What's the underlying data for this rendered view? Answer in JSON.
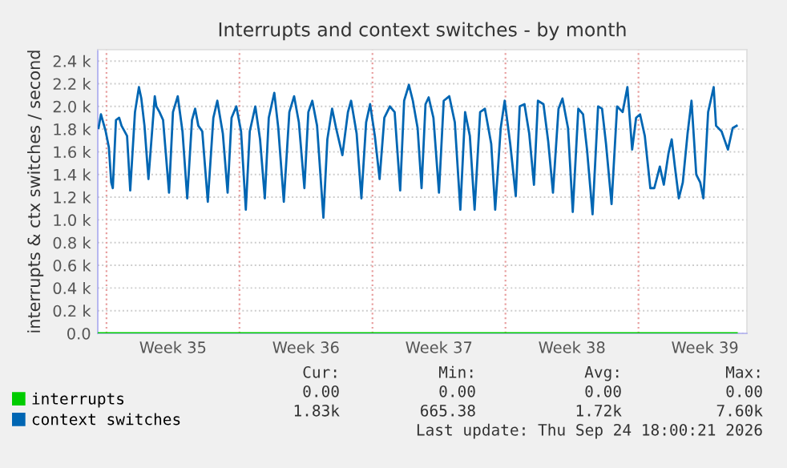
{
  "chart_data": {
    "type": "line",
    "title": "Interrupts and context switches - by month",
    "ylabel": "interrupts & ctx switches / second",
    "xlim": [
      "2026-08-23T13:00",
      "2026-09-26T17:00"
    ],
    "ylim": [
      0,
      2500
    ],
    "xticks": [
      {
        "value": "2026-08-27T12:00",
        "label": "Week 35"
      },
      {
        "value": "2026-09-03T12:00",
        "label": "Week 36"
      },
      {
        "value": "2026-09-10T12:00",
        "label": "Week 37"
      },
      {
        "value": "2026-09-17T12:00",
        "label": "Week 38"
      },
      {
        "value": "2026-09-24T12:00",
        "label": "Week 39"
      }
    ],
    "yticks": [
      {
        "value": 0,
        "label": "0.0"
      },
      {
        "value": 200,
        "label": "0.2 k"
      },
      {
        "value": 400,
        "label": "0.4 k"
      },
      {
        "value": 600,
        "label": "0.6 k"
      },
      {
        "value": 800,
        "label": "0.8 k"
      },
      {
        "value": 1000,
        "label": "1.0 k"
      },
      {
        "value": 1200,
        "label": "1.2 k"
      },
      {
        "value": 1400,
        "label": "1.4 k"
      },
      {
        "value": 1600,
        "label": "1.6 k"
      },
      {
        "value": 1800,
        "label": "1.8 k"
      },
      {
        "value": 2000,
        "label": "2.0 k"
      },
      {
        "value": 2200,
        "label": "2.2 k"
      },
      {
        "value": 2400,
        "label": "2.4 k"
      }
    ],
    "grid": "y",
    "legend": "bottom left",
    "line_style": "solid",
    "ref_lines": [
      {
        "axis": "x",
        "value": "2026-08-24",
        "color": "#e8a0a0",
        "line_style": "dotted"
      },
      {
        "axis": "x",
        "value": "2026-08-31",
        "color": "#e8a0a0",
        "line_style": "dotted"
      },
      {
        "axis": "x",
        "value": "2026-09-07",
        "color": "#e8a0a0",
        "line_style": "dotted"
      },
      {
        "axis": "x",
        "value": "2026-09-14",
        "color": "#e8a0a0",
        "line_style": "dotted"
      },
      {
        "axis": "x",
        "value": "2026-09-21",
        "color": "#e8a0a0",
        "line_style": "dotted"
      }
    ],
    "series": [
      {
        "name": "interrupts",
        "color": "#00cc00",
        "x": [
          "2026-08-23T14:00",
          "2026-09-26T04:00"
        ],
        "values": [
          0,
          0
        ]
      },
      {
        "name": "context switches",
        "color": "#0066b3",
        "x": [
          "2026-08-23T14:00",
          "2026-08-23T17:00",
          "2026-08-23T23:00",
          "2026-08-24T03:00",
          "2026-08-24T06:00",
          "2026-08-24T08:00",
          "2026-08-24T12:00",
          "2026-08-24T16:00",
          "2026-08-24T19:00",
          "2026-08-25T02:00",
          "2026-08-25T06:00",
          "2026-08-25T12:00",
          "2026-08-25T17:00",
          "2026-08-25T20:00",
          "2026-08-26T00:00",
          "2026-08-26T05:00",
          "2026-08-26T13:00",
          "2026-08-26T15:00",
          "2026-08-26T19:00",
          "2026-08-26T23:30",
          "2026-08-27T07:00",
          "2026-08-27T12:00",
          "2026-08-27T18:00",
          "2026-08-28T00:00",
          "2026-08-28T06:00",
          "2026-08-28T12:00",
          "2026-08-28T16:00",
          "2026-08-28T20:00",
          "2026-08-29T01:00",
          "2026-08-29T08:00",
          "2026-08-29T15:00",
          "2026-08-29T20:00",
          "2026-08-30T03:00",
          "2026-08-30T09:00",
          "2026-08-30T14:00",
          "2026-08-30T20:00",
          "2026-08-31T02:00",
          "2026-08-31T08:00",
          "2026-08-31T13:00",
          "2026-08-31T20:00",
          "2026-09-01T02:00",
          "2026-09-01T08:00",
          "2026-09-01T13:00",
          "2026-09-01T20:00",
          "2026-09-02T01:00",
          "2026-09-02T08:00",
          "2026-09-02T15:00",
          "2026-09-02T21:00",
          "2026-09-03T03:00",
          "2026-09-03T10:00",
          "2026-09-03T15:00",
          "2026-09-03T20:00",
          "2026-09-04T02:00",
          "2026-09-04T10:00",
          "2026-09-04T15:00",
          "2026-09-04T21:00",
          "2026-09-05T02:00",
          "2026-09-05T10:00",
          "2026-09-05T17:00",
          "2026-09-05T21:00",
          "2026-09-06T04:00",
          "2026-09-06T10:00",
          "2026-09-06T16:00",
          "2026-09-06T21:00",
          "2026-09-07T03:00",
          "2026-09-07T09:00",
          "2026-09-07T15:00",
          "2026-09-07T22:00",
          "2026-09-08T04:00",
          "2026-09-08T11:00",
          "2026-09-08T16:00",
          "2026-09-08T22:00",
          "2026-09-09T03:00",
          "2026-09-09T09:00",
          "2026-09-09T14:00",
          "2026-09-09T19:00",
          "2026-09-09T23:00",
          "2026-09-10T05:00",
          "2026-09-10T12:00",
          "2026-09-10T18:00",
          "2026-09-11T01:00",
          "2026-09-11T08:00",
          "2026-09-11T15:00",
          "2026-09-11T21:00",
          "2026-09-12T03:00",
          "2026-09-12T09:00",
          "2026-09-12T16:00",
          "2026-09-12T22:00",
          "2026-09-13T06:00",
          "2026-09-13T11:00",
          "2026-09-13T18:00",
          "2026-09-13T23:00",
          "2026-09-14T06:00",
          "2026-09-14T13:00",
          "2026-09-14T18:00",
          "2026-09-15T00:00",
          "2026-09-15T06:00",
          "2026-09-15T12:00",
          "2026-09-15T17:00",
          "2026-09-16T00:00",
          "2026-09-16T06:00",
          "2026-09-16T12:00",
          "2026-09-16T19:00",
          "2026-09-17T00:00",
          "2026-09-17T07:00",
          "2026-09-17T13:00",
          "2026-09-17T20:00",
          "2026-09-18T02:00",
          "2026-09-18T07:00",
          "2026-09-18T14:00",
          "2026-09-18T21:00",
          "2026-09-19T02:00",
          "2026-09-19T07:00",
          "2026-09-19T14:00",
          "2026-09-19T21:00",
          "2026-09-20T04:00",
          "2026-09-20T10:00",
          "2026-09-20T16:00",
          "2026-09-20T21:00",
          "2026-09-21T02:00",
          "2026-09-21T08:00",
          "2026-09-21T15:00",
          "2026-09-21T20:00",
          "2026-09-22T03:00",
          "2026-09-22T08:00",
          "2026-09-22T14:00",
          "2026-09-22T18:00",
          "2026-09-22T22:00",
          "2026-09-23T03:00",
          "2026-09-23T08:00",
          "2026-09-23T14:00",
          "2026-09-23T19:00",
          "2026-09-24T01:00",
          "2026-09-24T06:00",
          "2026-09-24T10:00",
          "2026-09-24T16:00",
          "2026-09-24T23:00",
          "2026-09-25T02:00",
          "2026-09-25T09:00",
          "2026-09-25T17:00",
          "2026-09-25T23:00",
          "2026-09-26T04:00"
        ],
        "values": [
          1810,
          1930,
          1780,
          1640,
          1330,
          1280,
          1880,
          1900,
          1830,
          1740,
          1260,
          1950,
          2170,
          2070,
          1830,
          1360,
          2090,
          2000,
          1950,
          1880,
          1240,
          1950,
          2090,
          1780,
          1190,
          1880,
          1980,
          1830,
          1780,
          1160,
          1900,
          2050,
          1760,
          1240,
          1900,
          2000,
          1780,
          1090,
          1780,
          2000,
          1710,
          1190,
          1900,
          2120,
          1810,
          1160,
          1950,
          2090,
          1860,
          1280,
          1950,
          2050,
          1830,
          1020,
          1710,
          1980,
          1810,
          1570,
          1950,
          2050,
          1760,
          1190,
          1860,
          2020,
          1740,
          1360,
          1900,
          2000,
          1950,
          1260,
          2050,
          2190,
          2050,
          1810,
          1280,
          2020,
          2080,
          1900,
          1240,
          2050,
          2090,
          1860,
          1090,
          1950,
          1740,
          1090,
          1950,
          1980,
          1670,
          1090,
          1810,
          2050,
          1670,
          1210,
          2000,
          2020,
          1760,
          1310,
          2050,
          2020,
          1690,
          1240,
          1980,
          2070,
          1810,
          1070,
          1980,
          1930,
          1620,
          1050,
          2000,
          1980,
          1670,
          1140,
          2000,
          1950,
          2170,
          1620,
          1900,
          1930,
          1740,
          1280,
          1280,
          1470,
          1310,
          1590,
          1710,
          1470,
          1190,
          1330,
          1760,
          2050,
          1400,
          1330,
          1190,
          1950,
          2170,
          1830,
          1780,
          1620,
          1810,
          1830
        ]
      }
    ],
    "annotations": [
      "Cur:",
      "Min:",
      "Avg:",
      "Max:",
      "0.00",
      "0.00",
      "0.00",
      "0.00",
      "1.83k",
      "665.38",
      "1.72k",
      "7.60k",
      "Last update: Thu Sep 24 18:00:21 2026"
    ]
  }
}
